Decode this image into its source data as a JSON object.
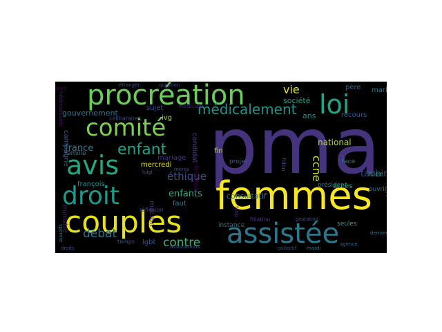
{
  "title": "",
  "background_color": "#000000",
  "words": [
    {
      "text": "pma",
      "color": "#46337e"
    },
    {
      "text": "femmes",
      "color": "#f8e621"
    },
    {
      "text": "procréation",
      "color": "#6ccd5a"
    },
    {
      "text": "couples",
      "color": "#e6e419"
    },
    {
      "text": "assistée",
      "color": "#2a788e"
    },
    {
      "text": "loi",
      "color": "#20a486"
    },
    {
      "text": "comité",
      "color": "#7ad151"
    },
    {
      "text": "avis",
      "color": "#22a884"
    },
    {
      "text": "droit",
      "color": "#1f9a8a"
    },
    {
      "text": "médicalement",
      "color": "#21918c"
    },
    {
      "text": "enfant",
      "color": "#1fa088"
    },
    {
      "text": "ouverture",
      "color": "#31688e"
    },
    {
      "text": "contre",
      "color": "#35b779"
    },
    {
      "text": "débat",
      "color": "#2c728e"
    },
    {
      "text": "éthique",
      "color": "#3b528b"
    },
    {
      "text": "enfants",
      "color": "#27ad81"
    },
    {
      "text": "france",
      "color": "#2a788e"
    },
    {
      "text": "vie",
      "color": "#e5e419"
    },
    {
      "text": "ccne",
      "color": "#c2df23"
    },
    {
      "text": "taubira",
      "color": "#3e4989"
    },
    {
      "text": "père",
      "color": "#31688e"
    },
    {
      "text": "marlène",
      "color": "#2a788e"
    },
    {
      "text": "favorable",
      "color": "#90d743"
    },
    {
      "text": "recours",
      "color": "#38598c"
    },
    {
      "text": "société",
      "color": "#1f9e89"
    },
    {
      "text": "ans",
      "color": "#21918c"
    },
    {
      "text": "national",
      "color": "#b5de2b"
    },
    {
      "text": "gouvernement",
      "color": "#2a788e"
    },
    {
      "text": "sujet",
      "color": "#3b528b"
    },
    {
      "text": "ivg",
      "color": "#a5db36"
    },
    {
      "text": "candidat",
      "color": "#424086"
    },
    {
      "text": "consultatif",
      "color": "#2c728e"
    },
    {
      "text": "président",
      "color": "#287c8e"
    },
    {
      "text": "accès",
      "color": "#22a884"
    },
    {
      "text": "hier",
      "color": "#1fa088"
    },
    {
      "text": "face",
      "color": "#26828e"
    },
    {
      "text": "fin",
      "color": "#b5de2b"
    },
    {
      "text": "projet",
      "color": "#365d8d"
    },
    {
      "text": "mariage",
      "color": "#46327e"
    },
    {
      "text": "mercredi",
      "color": "#e5e419"
    },
    {
      "text": "françois",
      "color": "#21918c"
    },
    {
      "text": "macron",
      "color": "#472c7a"
    },
    {
      "text": "faut",
      "color": "#2a788e"
    },
    {
      "text": "lgbt",
      "color": "#3b528b"
    },
    {
      "text": "ministre",
      "color": "#481f70"
    },
    {
      "text": "campagne",
      "color": "#3b528b"
    },
    {
      "text": "famille",
      "color": "#287c8e"
    },
    {
      "text": "instance",
      "color": "#2c728e"
    },
    {
      "text": "seules",
      "color": "#1fa088"
    },
    {
      "text": "ouvrir",
      "color": "#2a788e"
    },
    {
      "text": "médicale",
      "color": "#482475"
    },
    {
      "text": "célibataires",
      "color": "#3e4989"
    },
    {
      "text": "jean",
      "color": "#440154"
    },
    {
      "text": "filiation",
      "color": "#46327e"
    },
    {
      "text": "schiappa",
      "color": "#2c728e"
    },
    {
      "text": "réflexion",
      "color": "#404688"
    },
    {
      "text": "temps",
      "color": "#3b528b"
    },
    {
      "text": "associations",
      "color": "#365d8d"
    },
    {
      "text": "droits",
      "color": "#3e4989"
    },
    {
      "text": "agence",
      "color": "#31688e"
    },
    {
      "text": "collectif",
      "color": "#3b528b"
    },
    {
      "text": "mardi",
      "color": "#2c728e"
    },
    {
      "text": "république",
      "color": "#440154"
    },
    {
      "text": "fillon",
      "color": "#3e4989"
    },
    {
      "text": "étranger",
      "color": "#3b528b"
    },
    {
      "text": "hétérosexuels",
      "color": "#481f70"
    },
    {
      "text": "mères",
      "color": "#3e4989"
    },
    {
      "text": "luigi",
      "color": "#31688e"
    },
    {
      "text": "dernier",
      "color": "#2c728e"
    },
    {
      "text": "sperme",
      "color": "#2a788e"
    },
    {
      "text": "question",
      "color": "#3b528b"
    },
    {
      "text": "trop",
      "color": "#482878"
    },
    {
      "text": "gestation",
      "color": "#3e4989"
    }
  ]
}
